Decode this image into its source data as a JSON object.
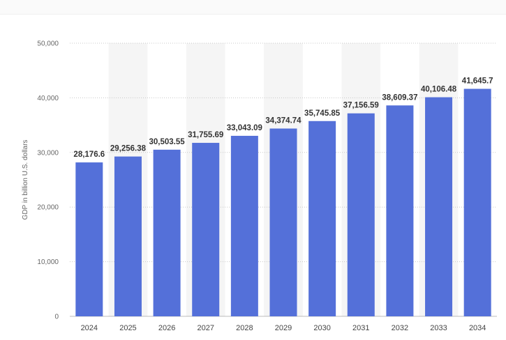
{
  "chart_data": {
    "type": "bar",
    "title": "",
    "xlabel": "",
    "ylabel": "GDP in billion U.S. dollars",
    "categories": [
      "2024",
      "2025",
      "2026",
      "2027",
      "2028",
      "2029",
      "2030",
      "2031",
      "2032",
      "2033",
      "2034"
    ],
    "values": [
      28176.6,
      29256.38,
      30503.55,
      31755.69,
      33043.09,
      34374.74,
      35745.85,
      37156.59,
      38609.37,
      40106.48,
      41645.7
    ],
    "data_labels": [
      "28,176.6",
      "29,256.38",
      "30,503.55",
      "31,755.69",
      "33,043.09",
      "34,374.74",
      "35,745.85",
      "37,156.59",
      "38,609.37",
      "40,106.48",
      "41,645.7"
    ],
    "ylim": [
      0,
      50000
    ],
    "yticks": [
      0,
      10000,
      20000,
      30000,
      40000,
      50000
    ],
    "ytick_labels": [
      "0",
      "10,000",
      "20,000",
      "30,000",
      "40,000",
      "50,000"
    ],
    "grid": true,
    "bar_color": "#5470d9",
    "band_color": "#f5f5f5",
    "legend": "none"
  }
}
